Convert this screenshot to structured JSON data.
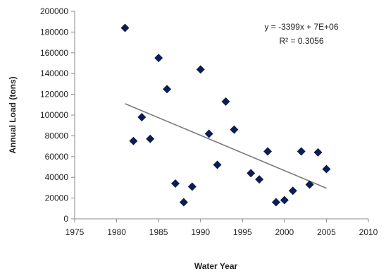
{
  "chart_data": {
    "type": "scatter",
    "title": "",
    "xlabel": "Water Year",
    "ylabel": "Annual Load (tons)",
    "xlim": [
      1975,
      2010
    ],
    "ylim": [
      0,
      200000
    ],
    "xticks": [
      1975,
      1980,
      1985,
      1990,
      1995,
      2000,
      2005,
      2010
    ],
    "yticks": [
      0,
      20000,
      40000,
      60000,
      80000,
      100000,
      120000,
      140000,
      160000,
      180000,
      200000
    ],
    "grid": false,
    "legend": "none",
    "marker": "diamond",
    "marker_color": "#0a1e52",
    "trendline_color": "#7a7a7a",
    "points": [
      {
        "x": 1981,
        "y": 184000
      },
      {
        "x": 1982,
        "y": 75000
      },
      {
        "x": 1983,
        "y": 98000
      },
      {
        "x": 1984,
        "y": 77000
      },
      {
        "x": 1985,
        "y": 155000
      },
      {
        "x": 1986,
        "y": 125000
      },
      {
        "x": 1987,
        "y": 34000
      },
      {
        "x": 1988,
        "y": 16000
      },
      {
        "x": 1989,
        "y": 31000
      },
      {
        "x": 1990,
        "y": 144000
      },
      {
        "x": 1991,
        "y": 82000
      },
      {
        "x": 1992,
        "y": 52000
      },
      {
        "x": 1993,
        "y": 113000
      },
      {
        "x": 1994,
        "y": 86000
      },
      {
        "x": 1996,
        "y": 44000
      },
      {
        "x": 1997,
        "y": 38000
      },
      {
        "x": 1998,
        "y": 65000
      },
      {
        "x": 1999,
        "y": 16000
      },
      {
        "x": 2000,
        "y": 18000
      },
      {
        "x": 2001,
        "y": 27000
      },
      {
        "x": 2002,
        "y": 65000
      },
      {
        "x": 2003,
        "y": 33000
      },
      {
        "x": 2004,
        "y": 64000
      },
      {
        "x": 2005,
        "y": 48000
      }
    ],
    "trendline": {
      "x": [
        1981,
        2005
      ],
      "y": [
        111000,
        29500
      ],
      "equation": "y = -3399x + 7E+06",
      "r_squared": "R² = 0.3056"
    }
  }
}
